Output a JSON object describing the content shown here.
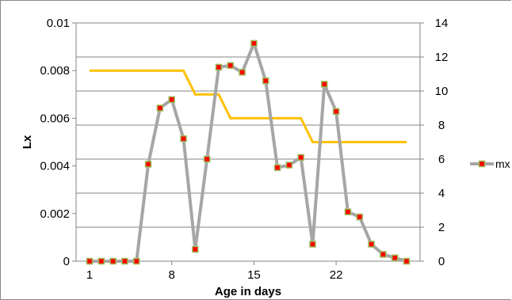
{
  "chart_data": {
    "type": "line",
    "xlabel": "Age in days",
    "ylabel": "Lx",
    "x_ticks": [
      1,
      8,
      15,
      22
    ],
    "x": [
      1,
      2,
      3,
      4,
      5,
      6,
      7,
      8,
      9,
      10,
      11,
      12,
      13,
      14,
      15,
      16,
      17,
      18,
      19,
      20,
      21,
      22,
      23,
      24,
      25,
      26,
      27,
      28
    ],
    "xlim": [
      1,
      28
    ],
    "y_left": {
      "ylim": [
        0,
        0.01
      ],
      "ticks": [
        "0",
        "0.002",
        "0.004",
        "0.006",
        "0.008",
        "0.01"
      ],
      "tick_values": [
        0,
        0.002,
        0.004,
        0.006,
        0.008,
        0.01
      ]
    },
    "y_right": {
      "ylim": [
        0,
        14
      ],
      "ticks": [
        "0",
        "2",
        "4",
        "6",
        "8",
        "10",
        "12",
        "14"
      ],
      "tick_values": [
        0,
        2,
        4,
        6,
        8,
        10,
        12,
        14
      ]
    },
    "grid": true,
    "legend_placement": "right",
    "series": [
      {
        "axis": "left",
        "color": "#FFC000",
        "marker": "none",
        "values": [
          0.008,
          0.008,
          0.008,
          0.008,
          0.008,
          0.008,
          0.008,
          0.008,
          0.008,
          0.007,
          0.007,
          0.007,
          0.006,
          0.006,
          0.006,
          0.006,
          0.006,
          0.006,
          0.006,
          0.005,
          0.005,
          0.005,
          0.005,
          0.005,
          0.005,
          0.005,
          0.005,
          0.005
        ]
      },
      {
        "name": "mx",
        "axis": "right",
        "color": "#A6A6A6",
        "marker": "square",
        "marker_fill": "#FF0000",
        "marker_edge": "#9BBB59",
        "values": [
          0,
          0,
          0,
          0,
          0,
          5.7,
          9,
          9.5,
          7.2,
          0.7,
          6,
          11.4,
          11.5,
          11.1,
          12.8,
          10.6,
          5.5,
          5.65,
          6.1,
          1,
          10.4,
          8.8,
          2.9,
          2.6,
          1,
          0.4,
          0.2,
          0
        ]
      }
    ]
  }
}
